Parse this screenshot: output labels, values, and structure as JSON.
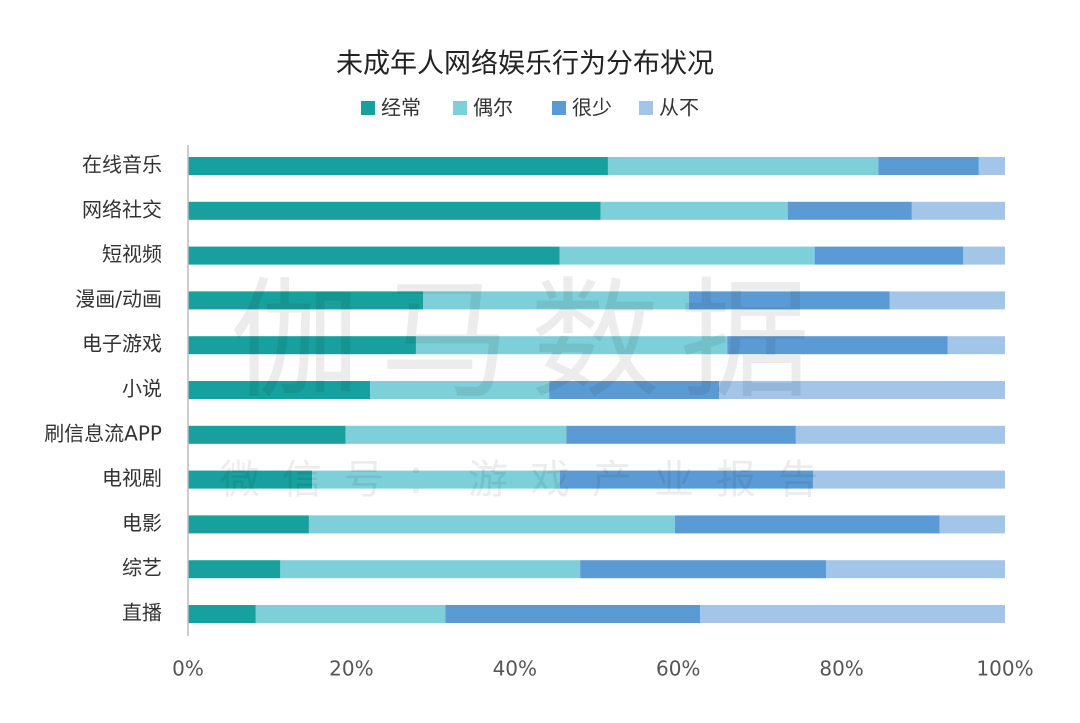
{
  "chart_data": {
    "type": "stacked-bar-horizontal",
    "title": "未成年人网络娱乐行为分布状况",
    "watermark": "伽马数据",
    "watermark_sub": "微信号：游戏产业报告",
    "categories": [
      "在线音乐",
      "网络社交",
      "短视频",
      "漫画/动画",
      "电子游戏",
      "小说",
      "刷信息流APP",
      "电视剧",
      "电影",
      "综艺",
      "直播"
    ],
    "series": [
      {
        "name": "经常",
        "color": "#17a09e",
        "values": [
          51.4,
          50.5,
          45.5,
          28.8,
          27.9,
          22.3,
          19.3,
          15.2,
          14.8,
          11.3,
          8.3
        ]
      },
      {
        "name": "偶尔",
        "color": "#7dd0da",
        "values": [
          33.1,
          22.9,
          31.2,
          32.5,
          38.1,
          21.9,
          27.0,
          30.3,
          44.8,
          36.7,
          23.2
        ]
      },
      {
        "name": "很少",
        "color": "#5b9bd5",
        "values": [
          12.3,
          15.2,
          18.2,
          24.6,
          27.0,
          20.8,
          28.1,
          31.0,
          32.4,
          30.1,
          31.2
        ]
      },
      {
        "name": "从不",
        "color": "#a2c5e8",
        "values": [
          3.2,
          11.4,
          5.1,
          14.1,
          7.0,
          35.0,
          25.6,
          23.5,
          8.0,
          21.9,
          37.3
        ]
      }
    ],
    "xlim": [
      0,
      100
    ],
    "xticks": [
      {
        "value": 0,
        "label": "0%"
      },
      {
        "value": 20,
        "label": "20%"
      },
      {
        "value": 40,
        "label": "40%"
      },
      {
        "value": 60,
        "label": "60%"
      },
      {
        "value": 80,
        "label": "80%"
      },
      {
        "value": 100,
        "label": "100%"
      }
    ],
    "legend": "top"
  }
}
